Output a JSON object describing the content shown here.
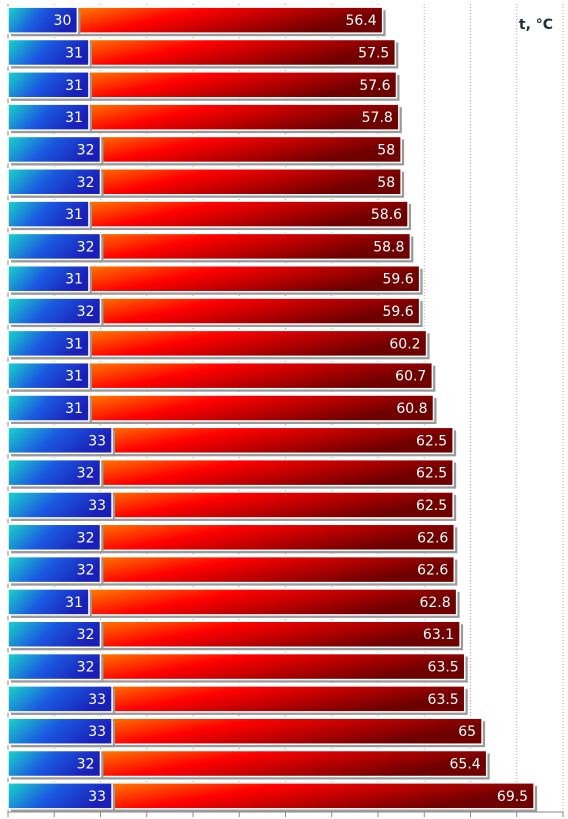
{
  "chart_data": {
    "type": "bar",
    "orientation": "horizontal",
    "axis_label": "t, °C",
    "xlim": [
      24,
      72
    ],
    "xticks": [
      24,
      28,
      32,
      36,
      40,
      44,
      48,
      52,
      56,
      60,
      64,
      68,
      72
    ],
    "grid": true,
    "series": [
      {
        "colors": [
          "#ffc000",
          "#ff0000",
          "#6e0000"
        ],
        "values": [
          56.4,
          57.5,
          57.6,
          57.8,
          58,
          58,
          58.6,
          58.8,
          59.6,
          59.6,
          60.2,
          60.7,
          60.8,
          62.5,
          62.5,
          62.5,
          62.6,
          62.6,
          62.8,
          63.1,
          63.5,
          63.5,
          65,
          65.4,
          69.5
        ]
      },
      {
        "colors": [
          "#19d6c8",
          "#1a5ae0",
          "#1a1fb8"
        ],
        "values": [
          30,
          31,
          31,
          31,
          32,
          32,
          31,
          32,
          31,
          32,
          31,
          31,
          31,
          33,
          32,
          33,
          32,
          32,
          31,
          32,
          32,
          33,
          33,
          32,
          33
        ]
      }
    ]
  }
}
